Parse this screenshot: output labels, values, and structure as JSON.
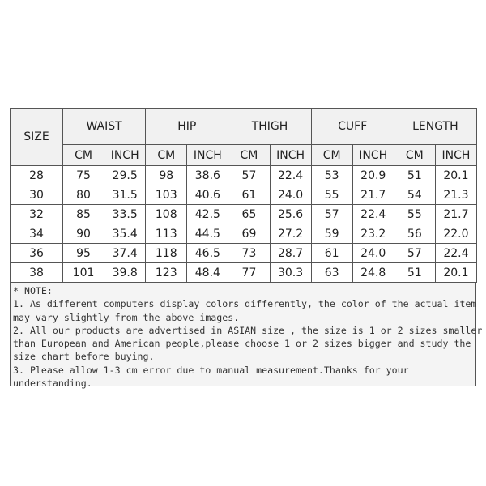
{
  "table": {
    "size_label": "SIZE",
    "groups": [
      "WAIST",
      "HIP",
      "THIGH",
      "CUFF",
      "LENGTH"
    ],
    "units": [
      "CM",
      "INCH"
    ],
    "rows": [
      [
        "28",
        "75",
        "29.5",
        "98",
        "38.6",
        "57",
        "22.4",
        "53",
        "20.9",
        "51",
        "20.1"
      ],
      [
        "30",
        "80",
        "31.5",
        "103",
        "40.6",
        "61",
        "24.0",
        "55",
        "21.7",
        "54",
        "21.3"
      ],
      [
        "32",
        "85",
        "33.5",
        "108",
        "42.5",
        "65",
        "25.6",
        "57",
        "22.4",
        "55",
        "21.7"
      ],
      [
        "34",
        "90",
        "35.4",
        "113",
        "44.5",
        "69",
        "27.2",
        "59",
        "23.2",
        "56",
        "22.0"
      ],
      [
        "36",
        "95",
        "37.4",
        "118",
        "46.5",
        "73",
        "28.7",
        "61",
        "24.0",
        "57",
        "22.4"
      ],
      [
        "38",
        "101",
        "39.8",
        "123",
        "48.4",
        "77",
        "30.3",
        "63",
        "24.8",
        "51",
        "20.1"
      ]
    ]
  },
  "note": {
    "lines": [
      "* NOTE:",
      "1. As different computers display colors differently, the color of the actual item",
      "may vary slightly from the above images.",
      "2. All our products are advertised in ASIAN size , the size is 1 or 2 sizes smaller",
      "than European and American people,please choose 1 or 2 sizes bigger and study the",
      "size chart before buying.",
      "3. Please allow 1-3 cm error due to manual measurement.Thanks for your",
      "understanding."
    ]
  }
}
